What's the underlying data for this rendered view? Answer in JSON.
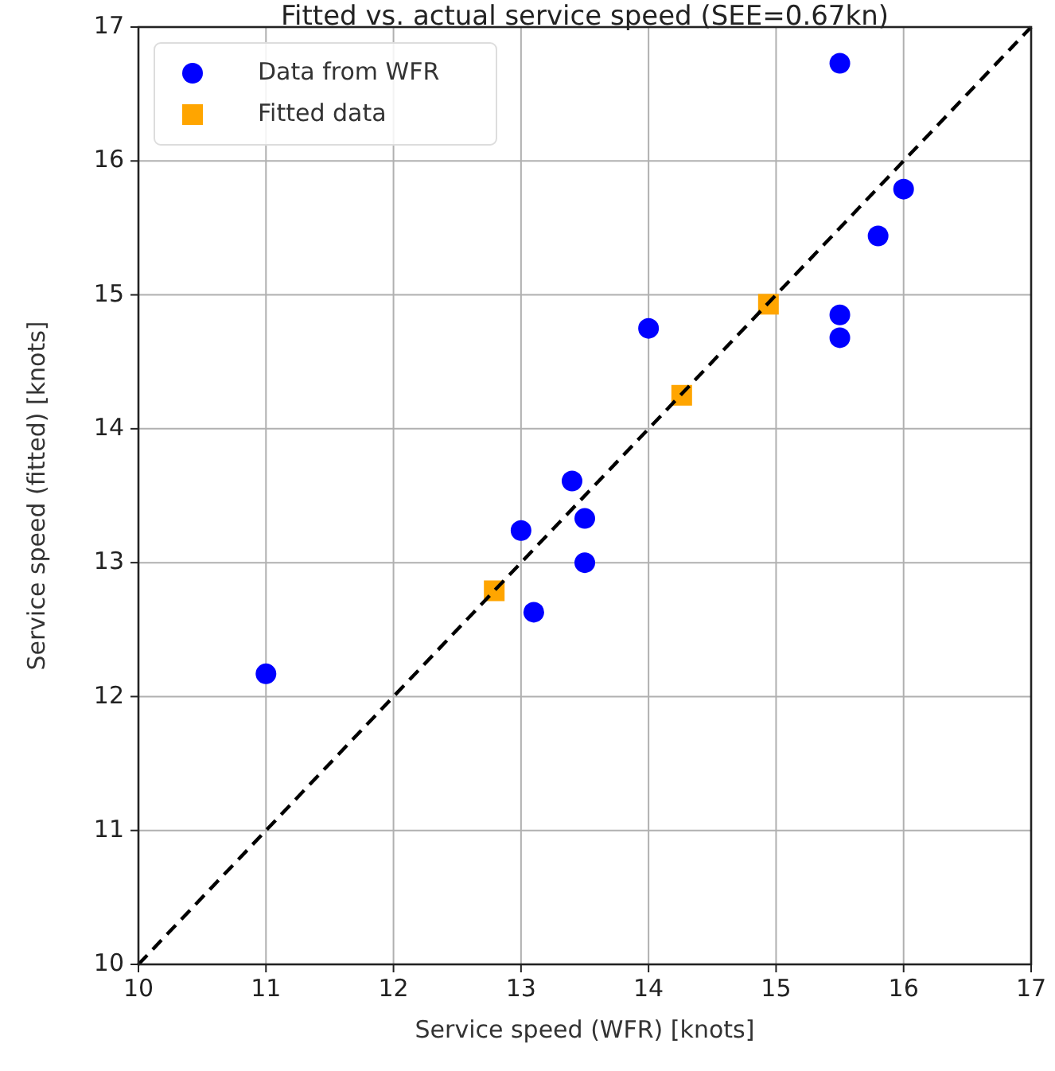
{
  "chart_data": {
    "type": "scatter",
    "title": "Fitted vs. actual service speed (SEE=0.67kn)",
    "xlabel": "Service speed (WFR) [knots]",
    "ylabel": "Service speed (fitted) [knots]",
    "xlim": [
      10,
      17
    ],
    "ylim": [
      10,
      17
    ],
    "xticks": [
      10,
      11,
      12,
      13,
      14,
      15,
      16,
      17
    ],
    "yticks": [
      10,
      11,
      12,
      13,
      14,
      15,
      16,
      17
    ],
    "grid": true,
    "legend": "top left",
    "series": [
      {
        "name": "Data from WFR",
        "color": "#0000ff",
        "marker": "circle",
        "x": [
          15.5,
          16.0,
          15.8,
          15.5,
          15.5,
          14.0,
          13.4,
          13.5,
          13.0,
          13.5,
          13.1,
          11.0
        ],
        "values": [
          16.73,
          15.79,
          15.44,
          14.85,
          14.68,
          14.75,
          13.61,
          13.33,
          13.24,
          13.0,
          12.63,
          12.17
        ]
      },
      {
        "name": "Fitted data",
        "color": "#ffa500",
        "marker": "square",
        "x": [
          12.79,
          14.26,
          14.94
        ],
        "values": [
          12.79,
          14.25,
          14.93
        ]
      },
      {
        "type": "line",
        "color": "#000000",
        "line_style": "dashed",
        "marker": "none",
        "x": [
          10,
          17
        ],
        "values": [
          10,
          17
        ]
      }
    ]
  }
}
